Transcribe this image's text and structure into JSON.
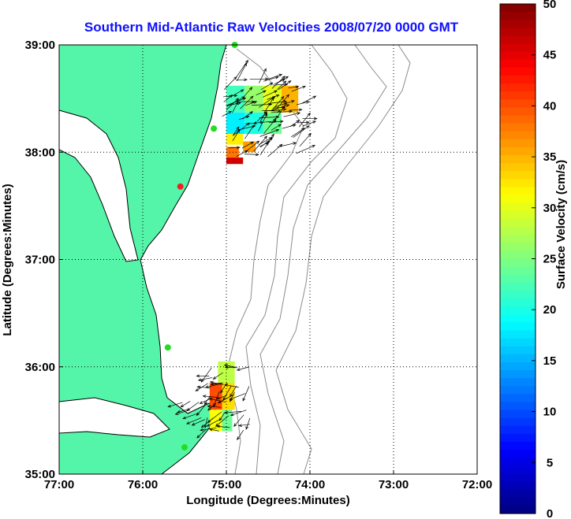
{
  "title": "Southern Mid-Atlantic Raw Velocities 2008/07/20 0000 GMT",
  "xlabel": "Longitude (Degrees:Minutes)",
  "ylabel": "Latitude (Degrees:Minutes)",
  "colorbar_label": "Surface Velocity (cm/s)",
  "x_ticks": [
    "77:00",
    "76:00",
    "75:00",
    "74:00",
    "73:00",
    "72:00"
  ],
  "y_ticks": [
    "39:00",
    "38:00",
    "37:00",
    "36:00",
    "35:00"
  ],
  "colorbar_ticks": [
    "50",
    "45",
    "40",
    "35",
    "30",
    "25",
    "20",
    "15",
    "10",
    "5",
    "0"
  ],
  "colors": {
    "land": "#55f5a9",
    "coastline": "#000000",
    "bathymetry": "#8c8c8c",
    "grid": "#000000",
    "title": "#1010ff",
    "station_active": "#22dd22",
    "station_inactive": "#ee2222"
  },
  "map": {
    "lon_range": [
      -77,
      -72
    ],
    "lat_range": [
      35,
      39
    ],
    "grid": true,
    "colorbar_range": [
      0,
      50
    ],
    "colorbar_units": "cm/s",
    "stations": [
      {
        "lon": -74.9,
        "lat": 39.0,
        "status": "active"
      },
      {
        "lon": -75.15,
        "lat": 38.22,
        "status": "active"
      },
      {
        "lon": -75.55,
        "lat": 37.68,
        "status": "inactive"
      },
      {
        "lon": -75.7,
        "lat": 36.18,
        "status": "active"
      },
      {
        "lon": -75.5,
        "lat": 35.25,
        "status": "active"
      }
    ]
  },
  "chart_data": {
    "type": "vector-field",
    "x_axis": "Longitude",
    "y_axis": "Latitude",
    "xlim": [
      -77,
      -72
    ],
    "ylim": [
      35,
      39
    ],
    "color_scale_range": [
      0,
      50
    ],
    "regions": [
      {
        "lon_range": [
          -75.1,
          -74.1
        ],
        "lat_range": [
          37.9,
          38.7
        ],
        "speed_range": [
          15,
          45
        ],
        "mean_direction": "northeast"
      },
      {
        "lon_range": [
          -75.2,
          -74.7
        ],
        "lat_range": [
          35.35,
          36.05
        ],
        "speed_range": [
          20,
          45
        ],
        "mean_direction": "southwest"
      }
    ]
  }
}
